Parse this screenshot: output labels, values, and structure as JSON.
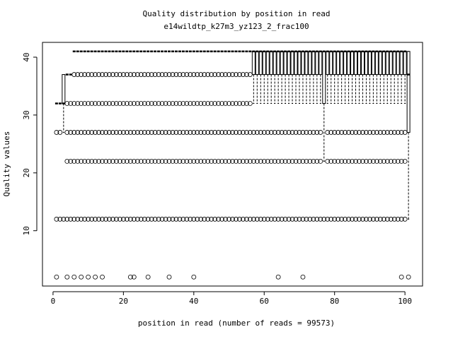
{
  "chart_data": {
    "type": "boxplot",
    "title": "Quality distribution by position in read",
    "subtitle": "e14wildtp_k27m3_yz123_2_frac100",
    "x_label": "position in read (number of reads = 99573)",
    "y_label": "Quality values",
    "color": "#000000",
    "x": [
      1,
      2,
      3,
      4,
      5,
      6,
      7,
      8,
      9,
      10,
      11,
      12,
      13,
      14,
      15,
      16,
      17,
      18,
      19,
      20,
      21,
      22,
      23,
      24,
      25,
      26,
      27,
      28,
      29,
      30,
      31,
      32,
      33,
      34,
      35,
      36,
      37,
      38,
      39,
      40,
      41,
      42,
      43,
      44,
      45,
      46,
      47,
      48,
      49,
      50,
      51,
      52,
      53,
      54,
      55,
      56,
      57,
      58,
      59,
      60,
      61,
      62,
      63,
      64,
      65,
      66,
      67,
      68,
      69,
      70,
      71,
      72,
      73,
      74,
      75,
      76,
      77,
      78,
      79,
      80,
      81,
      82,
      83,
      84,
      85,
      86,
      87,
      88,
      89,
      90,
      91,
      92,
      93,
      94,
      95,
      96,
      97,
      98,
      99,
      100,
      101
    ],
    "lower": [
      32,
      32,
      27,
      37,
      37,
      41,
      41,
      41,
      41,
      41,
      41,
      41,
      41,
      41,
      41,
      41,
      41,
      41,
      41,
      41,
      41,
      41,
      41,
      41,
      41,
      41,
      41,
      41,
      41,
      41,
      41,
      41,
      41,
      41,
      41,
      41,
      41,
      41,
      41,
      41,
      41,
      41,
      41,
      41,
      41,
      41,
      41,
      41,
      41,
      41,
      41,
      41,
      41,
      41,
      41,
      41,
      32,
      32,
      32,
      32,
      32,
      32,
      32,
      32,
      32,
      32,
      32,
      32,
      32,
      32,
      32,
      32,
      32,
      32,
      32,
      32,
      22,
      32,
      32,
      32,
      32,
      32,
      32,
      32,
      32,
      32,
      32,
      32,
      32,
      32,
      32,
      32,
      32,
      32,
      32,
      32,
      32,
      32,
      32,
      32,
      12
    ],
    "q1": [
      32,
      32,
      32,
      37,
      37,
      41,
      41,
      41,
      41,
      41,
      41,
      41,
      41,
      41,
      41,
      41,
      41,
      41,
      41,
      41,
      41,
      41,
      41,
      41,
      41,
      41,
      41,
      41,
      41,
      41,
      41,
      41,
      41,
      41,
      41,
      41,
      41,
      41,
      41,
      41,
      41,
      41,
      41,
      41,
      41,
      41,
      41,
      41,
      41,
      41,
      41,
      41,
      41,
      41,
      41,
      41,
      37,
      37,
      37,
      37,
      37,
      37,
      37,
      37,
      37,
      37,
      37,
      37,
      37,
      37,
      37,
      37,
      37,
      37,
      37,
      37,
      32,
      37,
      37,
      37,
      37,
      37,
      37,
      37,
      37,
      37,
      37,
      37,
      37,
      37,
      37,
      37,
      37,
      37,
      37,
      37,
      37,
      37,
      37,
      37,
      27
    ],
    "median": [
      32,
      32,
      32,
      37,
      37,
      41,
      41,
      41,
      41,
      41,
      41,
      41,
      41,
      41,
      41,
      41,
      41,
      41,
      41,
      41,
      41,
      41,
      41,
      41,
      41,
      41,
      41,
      41,
      41,
      41,
      41,
      41,
      41,
      41,
      41,
      41,
      41,
      41,
      41,
      41,
      41,
      41,
      41,
      41,
      41,
      41,
      41,
      41,
      41,
      41,
      41,
      41,
      41,
      41,
      41,
      41,
      41,
      41,
      41,
      41,
      41,
      41,
      41,
      41,
      41,
      41,
      41,
      41,
      41,
      41,
      41,
      41,
      41,
      41,
      41,
      41,
      41,
      41,
      41,
      41,
      41,
      41,
      41,
      41,
      41,
      41,
      41,
      41,
      41,
      41,
      41,
      41,
      41,
      41,
      41,
      41,
      41,
      41,
      41,
      41,
      37
    ],
    "q3": [
      32,
      32,
      37,
      37,
      37,
      41,
      41,
      41,
      41,
      41,
      41,
      41,
      41,
      41,
      41,
      41,
      41,
      41,
      41,
      41,
      41,
      41,
      41,
      41,
      41,
      41,
      41,
      41,
      41,
      41,
      41,
      41,
      41,
      41,
      41,
      41,
      41,
      41,
      41,
      41,
      41,
      41,
      41,
      41,
      41,
      41,
      41,
      41,
      41,
      41,
      41,
      41,
      41,
      41,
      41,
      41,
      41,
      41,
      41,
      41,
      41,
      41,
      41,
      41,
      41,
      41,
      41,
      41,
      41,
      41,
      41,
      41,
      41,
      41,
      41,
      41,
      41,
      41,
      41,
      41,
      41,
      41,
      41,
      41,
      41,
      41,
      41,
      41,
      41,
      41,
      41,
      41,
      41,
      41,
      41,
      41,
      41,
      41,
      41,
      41,
      41
    ],
    "upper": [
      32,
      32,
      37,
      37,
      37,
      41,
      41,
      41,
      41,
      41,
      41,
      41,
      41,
      41,
      41,
      41,
      41,
      41,
      41,
      41,
      41,
      41,
      41,
      41,
      41,
      41,
      41,
      41,
      41,
      41,
      41,
      41,
      41,
      41,
      41,
      41,
      41,
      41,
      41,
      41,
      41,
      41,
      41,
      41,
      41,
      41,
      41,
      41,
      41,
      41,
      41,
      41,
      41,
      41,
      41,
      41,
      41,
      41,
      41,
      41,
      41,
      41,
      41,
      41,
      41,
      41,
      41,
      41,
      41,
      41,
      41,
      41,
      41,
      41,
      41,
      41,
      41,
      41,
      41,
      41,
      41,
      41,
      41,
      41,
      41,
      41,
      41,
      41,
      41,
      41,
      41,
      41,
      41,
      41,
      41,
      41,
      41,
      41,
      41,
      41,
      41
    ],
    "outliers": [
      [
        27,
        12,
        2
      ],
      [
        27,
        12
      ],
      [
        12
      ],
      [
        32,
        27,
        22,
        12,
        2
      ],
      [
        32,
        27,
        22,
        12
      ],
      [
        37,
        32,
        27,
        22,
        12,
        2
      ],
      [
        37,
        32,
        27,
        22,
        12
      ],
      [
        37,
        32,
        27,
        22,
        12,
        2
      ],
      [
        37,
        32,
        27,
        22,
        12
      ],
      [
        37,
        32,
        27,
        22,
        12,
        2
      ],
      [
        37,
        32,
        27,
        22,
        12
      ],
      [
        37,
        32,
        27,
        22,
        12,
        2
      ],
      [
        37,
        32,
        27,
        22,
        12
      ],
      [
        37,
        32,
        27,
        22,
        12,
        2
      ],
      [
        37,
        32,
        27,
        22,
        12
      ],
      [
        37,
        32,
        27,
        22,
        12
      ],
      [
        37,
        32,
        27,
        22,
        12
      ],
      [
        37,
        32,
        27,
        22,
        12
      ],
      [
        37,
        32,
        27,
        22,
        12
      ],
      [
        37,
        32,
        27,
        22,
        12
      ],
      [
        37,
        32,
        27,
        22,
        12
      ],
      [
        37,
        32,
        27,
        22,
        12,
        2
      ],
      [
        37,
        32,
        27,
        22,
        12,
        2
      ],
      [
        37,
        32,
        27,
        22,
        12
      ],
      [
        37,
        32,
        27,
        22,
        12
      ],
      [
        37,
        32,
        27,
        22,
        12
      ],
      [
        37,
        32,
        27,
        22,
        12,
        2
      ],
      [
        37,
        32,
        27,
        22,
        12
      ],
      [
        37,
        32,
        27,
        22,
        12
      ],
      [
        37,
        32,
        27,
        22,
        12
      ],
      [
        37,
        32,
        27,
        22,
        12
      ],
      [
        37,
        32,
        27,
        22,
        12
      ],
      [
        37,
        32,
        27,
        22,
        12,
        2
      ],
      [
        37,
        32,
        27,
        22,
        12
      ],
      [
        37,
        32,
        27,
        22,
        12
      ],
      [
        37,
        32,
        27,
        22,
        12
      ],
      [
        37,
        32,
        27,
        22,
        12
      ],
      [
        37,
        32,
        27,
        22,
        12
      ],
      [
        37,
        32,
        27,
        22,
        12
      ],
      [
        37,
        32,
        27,
        22,
        12,
        2
      ],
      [
        37,
        32,
        27,
        22,
        12
      ],
      [
        37,
        32,
        27,
        22,
        12
      ],
      [
        37,
        32,
        27,
        22,
        12
      ],
      [
        37,
        32,
        27,
        22,
        12
      ],
      [
        37,
        32,
        27,
        22,
        12
      ],
      [
        37,
        32,
        27,
        22,
        12
      ],
      [
        37,
        32,
        27,
        22,
        12
      ],
      [
        37,
        32,
        27,
        22,
        12
      ],
      [
        37,
        32,
        27,
        22,
        12
      ],
      [
        37,
        32,
        27,
        22,
        12
      ],
      [
        37,
        32,
        27,
        22,
        12
      ],
      [
        37,
        32,
        27,
        22,
        12
      ],
      [
        37,
        32,
        27,
        22,
        12
      ],
      [
        37,
        32,
        27,
        22,
        12
      ],
      [
        37,
        32,
        27,
        22,
        12
      ],
      [
        37,
        32,
        27,
        22,
        12
      ],
      [
        27,
        22,
        12
      ],
      [
        27,
        22,
        12
      ],
      [
        27,
        22,
        12
      ],
      [
        27,
        22,
        12
      ],
      [
        27,
        22,
        12
      ],
      [
        27,
        22,
        12
      ],
      [
        27,
        22,
        12
      ],
      [
        27,
        22,
        12,
        2
      ],
      [
        27,
        22,
        12
      ],
      [
        27,
        22,
        12
      ],
      [
        27,
        22,
        12
      ],
      [
        27,
        22,
        12
      ],
      [
        27,
        22,
        12
      ],
      [
        27,
        22,
        12
      ],
      [
        27,
        22,
        12,
        2
      ],
      [
        27,
        22,
        12
      ],
      [
        27,
        22,
        12
      ],
      [
        27,
        22,
        12
      ],
      [
        27,
        22,
        12
      ],
      [
        27,
        22,
        12
      ],
      [
        12
      ],
      [
        27,
        22,
        12
      ],
      [
        27,
        22,
        12
      ],
      [
        27,
        22,
        12
      ],
      [
        27,
        22,
        12
      ],
      [
        27,
        22,
        12
      ],
      [
        27,
        22,
        12
      ],
      [
        27,
        22,
        12
      ],
      [
        27,
        22,
        12
      ],
      [
        27,
        22,
        12
      ],
      [
        27,
        22,
        12
      ],
      [
        27,
        22,
        12
      ],
      [
        27,
        22,
        12
      ],
      [
        27,
        22,
        12
      ],
      [
        27,
        22,
        12
      ],
      [
        27,
        22,
        12
      ],
      [
        27,
        22,
        12
      ],
      [
        27,
        22,
        12
      ],
      [
        27,
        22,
        12
      ],
      [
        27,
        22,
        12
      ],
      [
        27,
        22,
        12
      ],
      [
        27,
        22,
        12
      ],
      [
        27,
        22,
        12,
        2
      ],
      [
        27,
        22,
        12
      ],
      [
        2
      ]
    ],
    "xlim": [
      -3,
      105
    ],
    "ylim": [
      0.44,
      42.56
    ],
    "xticks": [
      0,
      20,
      40,
      60,
      80,
      100
    ],
    "yticks": [
      10,
      20,
      30,
      40
    ]
  }
}
